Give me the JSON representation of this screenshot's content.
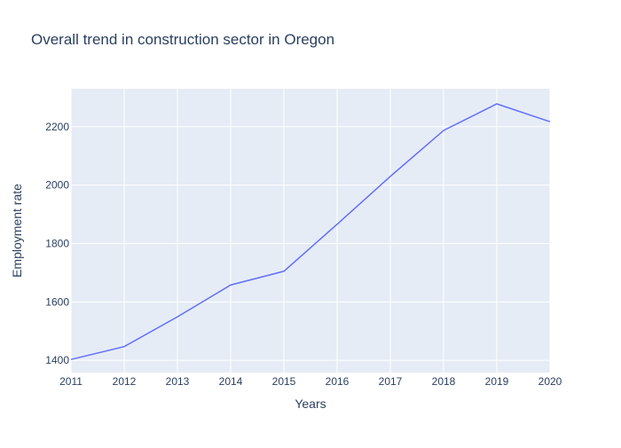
{
  "chart_data": {
    "type": "line",
    "title": "Overall trend in construction sector in Oregon",
    "xlabel": "Years",
    "ylabel": "Employment rate",
    "x": [
      2011,
      2012,
      2013,
      2014,
      2015,
      2016,
      2017,
      2018,
      2019,
      2020
    ],
    "series": [
      {
        "values": [
          1403,
          1447,
          1549,
          1658,
          1705,
          1866,
          2030,
          2187,
          2278,
          2217
        ]
      }
    ],
    "xticks": [
      "2011",
      "2012",
      "2013",
      "2014",
      "2015",
      "2016",
      "2017",
      "2018",
      "2019",
      "2020"
    ],
    "yticks": [
      "1400",
      "1600",
      "1800",
      "2000",
      "2200"
    ],
    "ytick_values": [
      1400,
      1600,
      1800,
      2000,
      2200
    ],
    "xlim": [
      2011,
      2020
    ],
    "ylim": [
      1358,
      2330
    ],
    "grid": true,
    "colors": {
      "plot_bg": "#e5ecf6",
      "grid": "#ffffff",
      "line": "#636efa",
      "text": "#2a3f5f"
    }
  }
}
